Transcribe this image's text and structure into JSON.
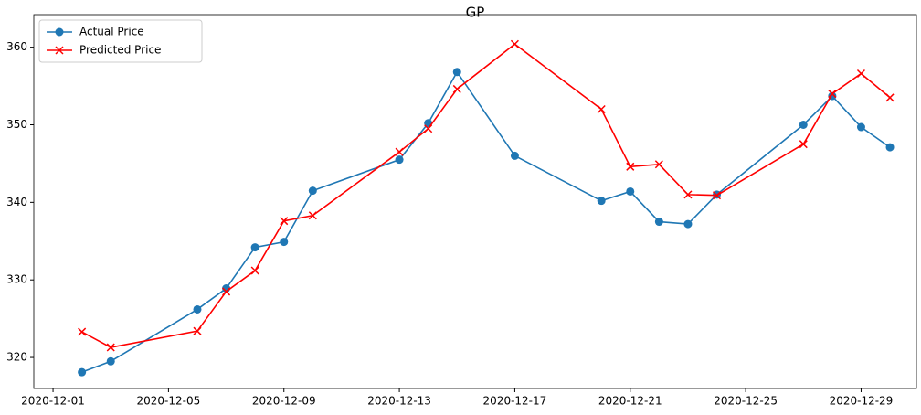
{
  "chart_data": {
    "type": "line",
    "title": "GP",
    "x": [
      "2020-12-02",
      "2020-12-03",
      "2020-12-06",
      "2020-12-07",
      "2020-12-08",
      "2020-12-09",
      "2020-12-10",
      "2020-12-13",
      "2020-12-14",
      "2020-12-15",
      "2020-12-17",
      "2020-12-20",
      "2020-12-21",
      "2020-12-22",
      "2020-12-23",
      "2020-12-24",
      "2020-12-27",
      "2020-12-28",
      "2020-12-29",
      "2020-12-30"
    ],
    "series": [
      {
        "name": "Actual Price",
        "color": "#1f77b4",
        "marker": "circle",
        "values": [
          318.1,
          319.5,
          326.2,
          328.9,
          334.2,
          334.9,
          341.5,
          345.5,
          350.2,
          356.8,
          346.0,
          340.2,
          341.4,
          337.5,
          337.2,
          341.0,
          350.0,
          353.7,
          349.7,
          347.1
        ]
      },
      {
        "name": "Predicted Price",
        "color": "red",
        "marker": "x",
        "values": [
          323.3,
          321.3,
          323.4,
          328.5,
          331.2,
          337.6,
          338.3,
          346.5,
          349.5,
          354.6,
          360.4,
          352.0,
          344.6,
          344.9,
          341.0,
          340.9,
          347.5,
          354.0,
          356.6,
          353.5
        ]
      }
    ],
    "xlim": [
      "2020-11-30T08:00",
      "2020-12-30T22:00"
    ],
    "xticks": [
      "2020-12-01",
      "2020-12-05",
      "2020-12-09",
      "2020-12-13",
      "2020-12-17",
      "2020-12-21",
      "2020-12-25",
      "2020-12-29"
    ],
    "ylim": [
      316,
      364.2
    ],
    "yticks": [
      320,
      330,
      340,
      350,
      360
    ],
    "legend": "upper left"
  }
}
